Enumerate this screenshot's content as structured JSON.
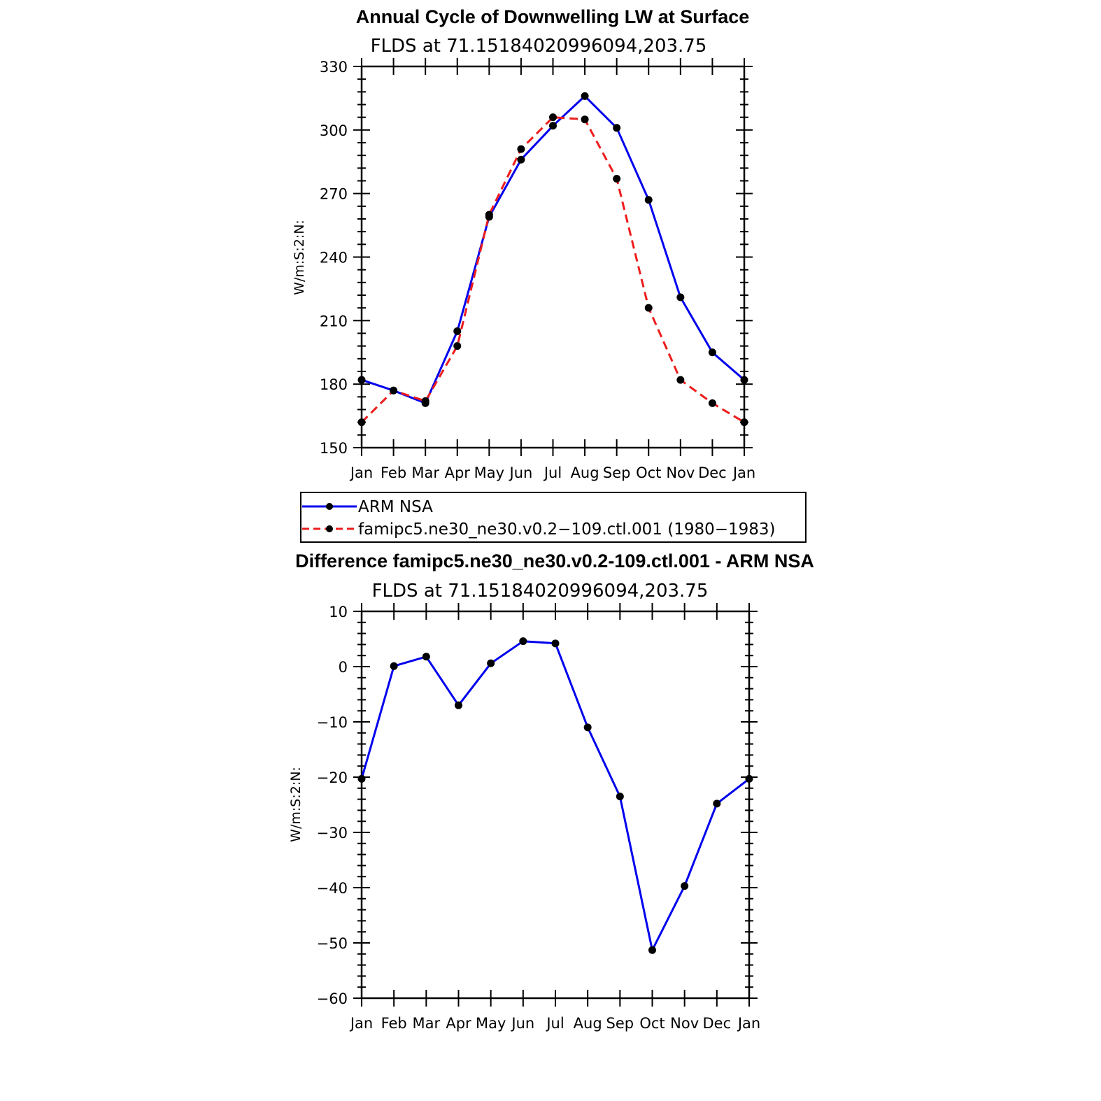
{
  "chart_data": [
    {
      "type": "line",
      "title": "Annual Cycle of Downwelling LW at Surface",
      "subtitle": "FLDS at 71.15184020996094,203.75",
      "xlabel": "",
      "ylabel": "W/m:S:2:N:",
      "categories": [
        "Jan",
        "Feb",
        "Mar",
        "Apr",
        "May",
        "Jun",
        "Jul",
        "Aug",
        "Sep",
        "Oct",
        "Nov",
        "Dec",
        "Jan"
      ],
      "ylim": [
        150,
        330
      ],
      "yticks": [
        150,
        180,
        210,
        240,
        270,
        300,
        330
      ],
      "series": [
        {
          "name": "ARM NSA",
          "color": "#0000ee",
          "dash": "solid",
          "values": [
            182,
            177,
            171,
            205,
            259,
            286,
            302,
            316,
            301,
            267,
            221,
            195,
            182
          ]
        },
        {
          "name": "famipc5.ne30_ne30.v0.2−109.ctl.001 (1980−1983)",
          "color": "#ee1c1c",
          "dash": "dashed",
          "values": [
            162,
            177,
            172,
            198,
            260,
            291,
            306,
            305,
            277,
            216,
            182,
            171,
            162
          ]
        }
      ],
      "legend": {
        "placement": "below",
        "entries": [
          "ARM NSA",
          "famipc5.ne30_ne30.v0.2−109.ctl.001 (1980−1983)"
        ]
      }
    },
    {
      "type": "line",
      "title": "Difference famipc5.ne30_ne30.v0.2-109.ctl.001 - ARM NSA",
      "subtitle": "FLDS at 71.15184020996094,203.75",
      "xlabel": "",
      "ylabel": "W/m:S:2:N:",
      "categories": [
        "Jan",
        "Feb",
        "Mar",
        "Apr",
        "May",
        "Jun",
        "Jul",
        "Aug",
        "Sep",
        "Oct",
        "Nov",
        "Dec",
        "Jan"
      ],
      "ylim": [
        -60,
        10
      ],
      "yticks": [
        -60,
        -50,
        -40,
        -30,
        -20,
        -10,
        0,
        10
      ],
      "series": [
        {
          "name": "Difference",
          "color": "#0000ee",
          "dash": "solid",
          "values": [
            -20.3,
            0.1,
            1.8,
            -7,
            0.6,
            4.6,
            4.2,
            -11,
            -23.5,
            -51.3,
            -39.7,
            -24.8,
            -20.3
          ]
        }
      ]
    }
  ]
}
